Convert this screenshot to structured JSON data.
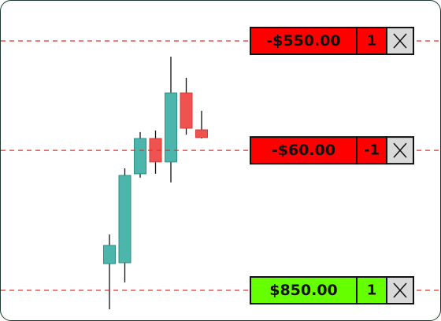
{
  "chart_data": {
    "type": "candlestick",
    "ylim": [
      0,
      100
    ],
    "up_color": "#4db6ac",
    "down_color": "#ef5350",
    "candles": [
      {
        "open": 18.1,
        "high": 27.2,
        "low": 3.9,
        "close": 23.8
      },
      {
        "open": 18.4,
        "high": 47.8,
        "low": 12.3,
        "close": 45.6
      },
      {
        "open": 46.1,
        "high": 59.1,
        "low": 44.9,
        "close": 57.1
      },
      {
        "open": 57.1,
        "high": 59.6,
        "low": 46.1,
        "close": 49.8
      },
      {
        "open": 49.8,
        "high": 82.6,
        "low": 43.4,
        "close": 71.3
      },
      {
        "open": 71.3,
        "high": 76.0,
        "low": 58.3,
        "close": 60.3
      },
      {
        "open": 59.8,
        "high": 65.7,
        "low": 57.1,
        "close": 57.4
      }
    ],
    "orders": [
      {
        "price": 87.5,
        "label": "-$550.00",
        "quantity": "1",
        "color": "#ff0000"
      },
      {
        "price": 53.4,
        "label": "-$60.00",
        "quantity": "-1",
        "color": "#ff0000"
      },
      {
        "price": 9.8,
        "label": "$850.00",
        "quantity": "1",
        "color": "#66ff00"
      }
    ]
  }
}
